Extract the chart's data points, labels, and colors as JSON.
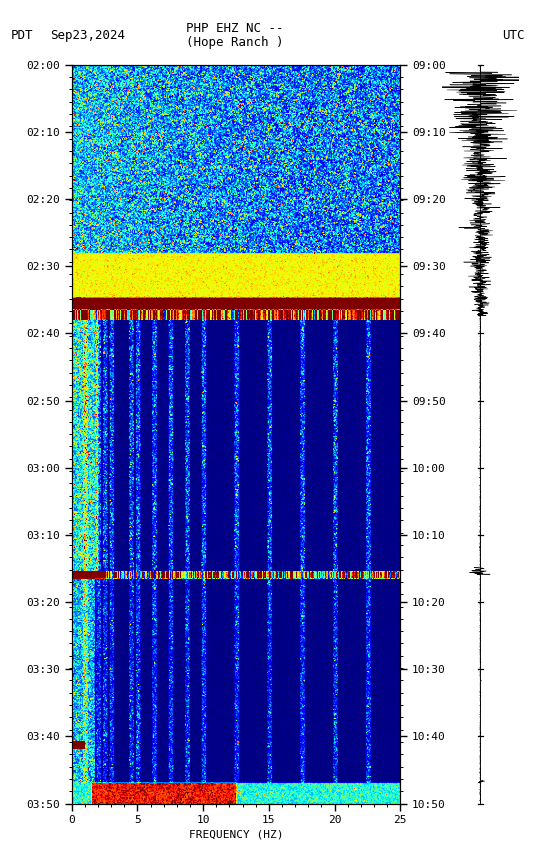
{
  "title_line1": "PHP EHZ NC --",
  "title_line2": "(Hope Ranch )",
  "left_label": "PDT",
  "date_label": "Sep23,2024",
  "right_label": "UTC",
  "xlabel": "FREQUENCY (HZ)",
  "freq_min": 0,
  "freq_max": 25,
  "time_labels_left": [
    "02:00",
    "02:10",
    "02:20",
    "02:30",
    "02:40",
    "02:50",
    "03:00",
    "03:10",
    "03:20",
    "03:30",
    "03:40",
    "03:50"
  ],
  "time_labels_right": [
    "09:00",
    "09:10",
    "09:20",
    "09:30",
    "09:40",
    "09:50",
    "10:00",
    "10:10",
    "10:20",
    "10:30",
    "10:40",
    "10:50"
  ],
  "background_color": "#ffffff",
  "fig_width": 5.52,
  "fig_height": 8.64
}
